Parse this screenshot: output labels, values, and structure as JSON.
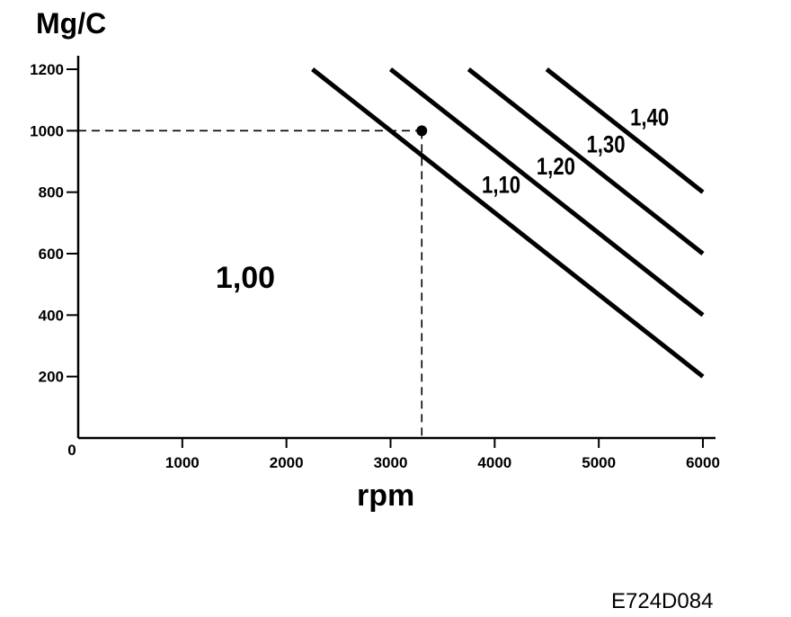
{
  "chart_data": {
    "type": "line",
    "title": "",
    "xlabel": "rpm",
    "ylabel": "Mg/C",
    "xlim": [
      0,
      6000
    ],
    "ylim": [
      0,
      1200
    ],
    "x_ticks": [
      0,
      1000,
      2000,
      3000,
      4000,
      5000,
      6000
    ],
    "y_ticks": [
      200,
      400,
      600,
      800,
      1000,
      1200
    ],
    "x_tick_labels": [
      "0",
      "1000",
      "2000",
      "3000",
      "4000",
      "5000",
      "6000"
    ],
    "y_tick_labels": [
      "200",
      "400",
      "600",
      "800",
      "1000",
      "1200"
    ],
    "grid": false,
    "region_label": "1,00",
    "series": [
      {
        "name": "1,10",
        "x": [
          2250,
          6000
        ],
        "y": [
          1200,
          200
        ]
      },
      {
        "name": "1,20",
        "x": [
          3000,
          6000
        ],
        "y": [
          1200,
          400
        ]
      },
      {
        "name": "1,30",
        "x": [
          3750,
          6000
        ],
        "y": [
          1200,
          600
        ]
      },
      {
        "name": "1,40",
        "x": [
          4500,
          6000
        ],
        "y": [
          1200,
          800
        ]
      }
    ],
    "marker_point": {
      "x": 3300,
      "y": 1000
    }
  },
  "figure_code": "E724D084"
}
